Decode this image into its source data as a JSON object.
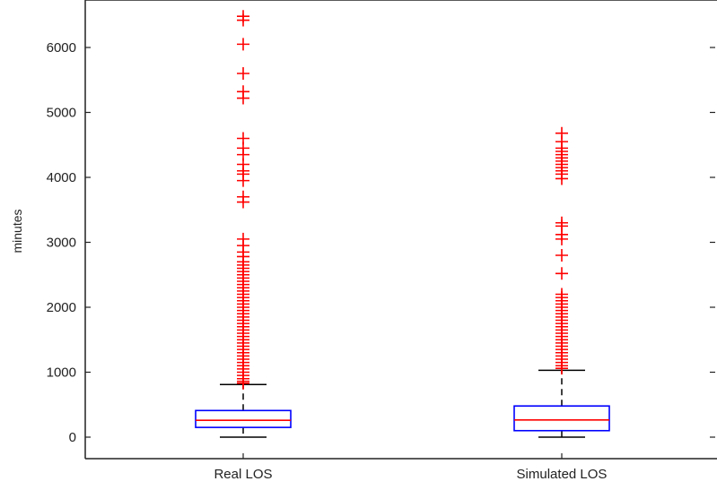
{
  "chart_data": {
    "type": "boxplot",
    "ylabel": "minutes",
    "ylim": [
      0,
      6700
    ],
    "yticks": [
      0,
      1000,
      2000,
      3000,
      4000,
      5000,
      6000
    ],
    "ytick_labels": [
      "0",
      "1000",
      "2000",
      "3000",
      "4000",
      "5000",
      "6000"
    ],
    "categories": [
      "Real LOS",
      "Simulated LOS"
    ],
    "grid": false,
    "colors": {
      "box": "#0000ff",
      "median": "#ff0000",
      "whisker": "#000000",
      "outlier": "#ff0000"
    },
    "boxes": [
      {
        "label": "Real LOS",
        "min": 0,
        "q1": 150,
        "median": 260,
        "q3": 410,
        "whisker_high": 810,
        "outliers": [
          6480,
          6420,
          6050,
          5600,
          5320,
          5220,
          4600,
          4450,
          4350,
          4200,
          4100,
          4050,
          3950,
          3700,
          3620,
          3050,
          2950,
          2850,
          2780,
          2700,
          2650,
          2600,
          2550,
          2500,
          2450,
          2400,
          2350,
          2300,
          2250,
          2200,
          2150,
          2100,
          2050,
          2000,
          1950,
          1900,
          1850,
          1800,
          1750,
          1700,
          1650,
          1600,
          1550,
          1500,
          1450,
          1400,
          1350,
          1300,
          1250,
          1200,
          1150,
          1100,
          1050,
          1000,
          950,
          900,
          860,
          830
        ]
      },
      {
        "label": "Simulated LOS",
        "min": 0,
        "q1": 100,
        "median": 265,
        "q3": 480,
        "whisker_high": 1030,
        "outliers": [
          4680,
          4550,
          4450,
          4400,
          4350,
          4300,
          4250,
          4200,
          4150,
          4100,
          4050,
          3980,
          3300,
          3250,
          3120,
          3050,
          2800,
          2520,
          2200,
          2150,
          2100,
          2050,
          2000,
          1950,
          1900,
          1850,
          1800,
          1750,
          1700,
          1650,
          1600,
          1550,
          1500,
          1450,
          1400,
          1350,
          1300,
          1250,
          1200,
          1150,
          1100,
          1060
        ]
      }
    ]
  }
}
